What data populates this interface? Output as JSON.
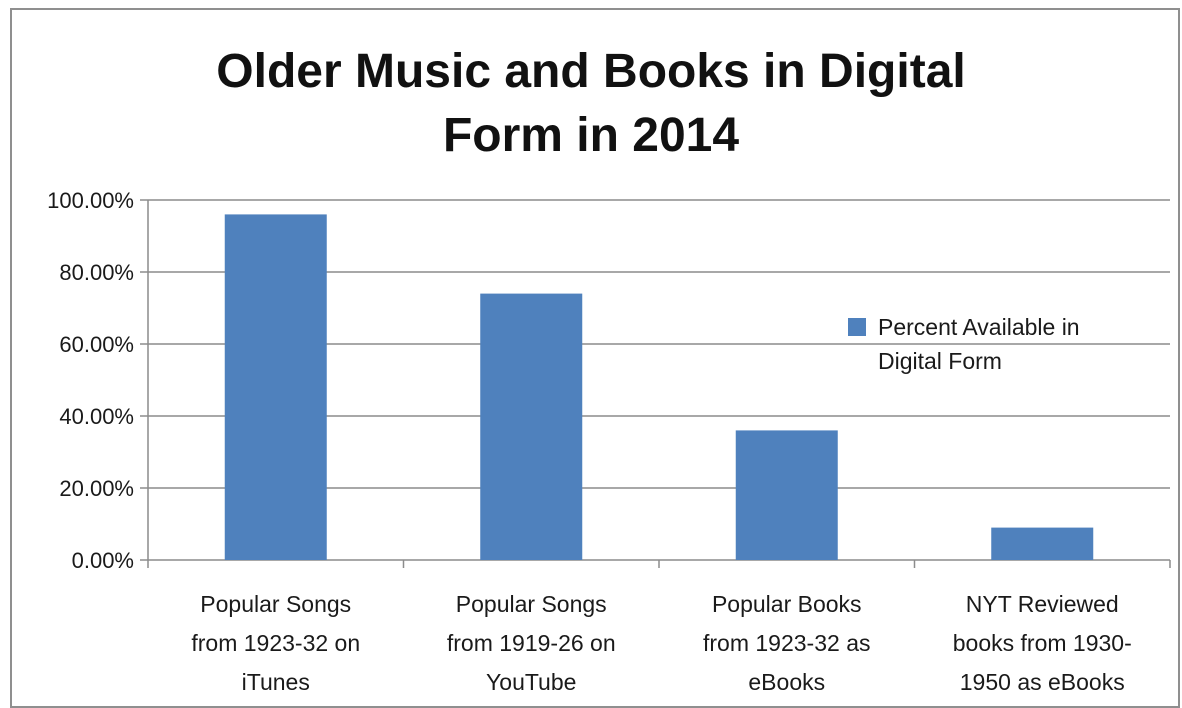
{
  "chart_data": {
    "type": "bar",
    "title": "Older Music and Books in Digital Form in 2014",
    "title_lines": [
      "Older Music and Books in Digital",
      "Form in 2014"
    ],
    "categories": [
      [
        "Popular Songs",
        "from 1923-32 on",
        "iTunes"
      ],
      [
        "Popular Songs",
        "from 1919-26 on",
        "YouTube"
      ],
      [
        "Popular Books",
        "from 1923-32 as",
        "eBooks"
      ],
      [
        "NYT Reviewed",
        "books from 1930-",
        "1950 as eBooks"
      ]
    ],
    "series": [
      {
        "name": "Percent Available in Digital Form",
        "values": [
          0.96,
          0.74,
          0.36,
          0.09
        ],
        "color": "#4f81bd"
      }
    ],
    "legend_lines": [
      "Percent Available in",
      "Digital Form"
    ],
    "ylim": [
      0,
      1.0
    ],
    "yticks": [
      0,
      0.2,
      0.4,
      0.6,
      0.8,
      1.0
    ],
    "ytick_labels": [
      "0.00%",
      "20.00%",
      "40.00%",
      "60.00%",
      "80.00%",
      "100.00%"
    ],
    "xlabel": "",
    "ylabel": "",
    "grid": true,
    "legend_position": "right"
  }
}
